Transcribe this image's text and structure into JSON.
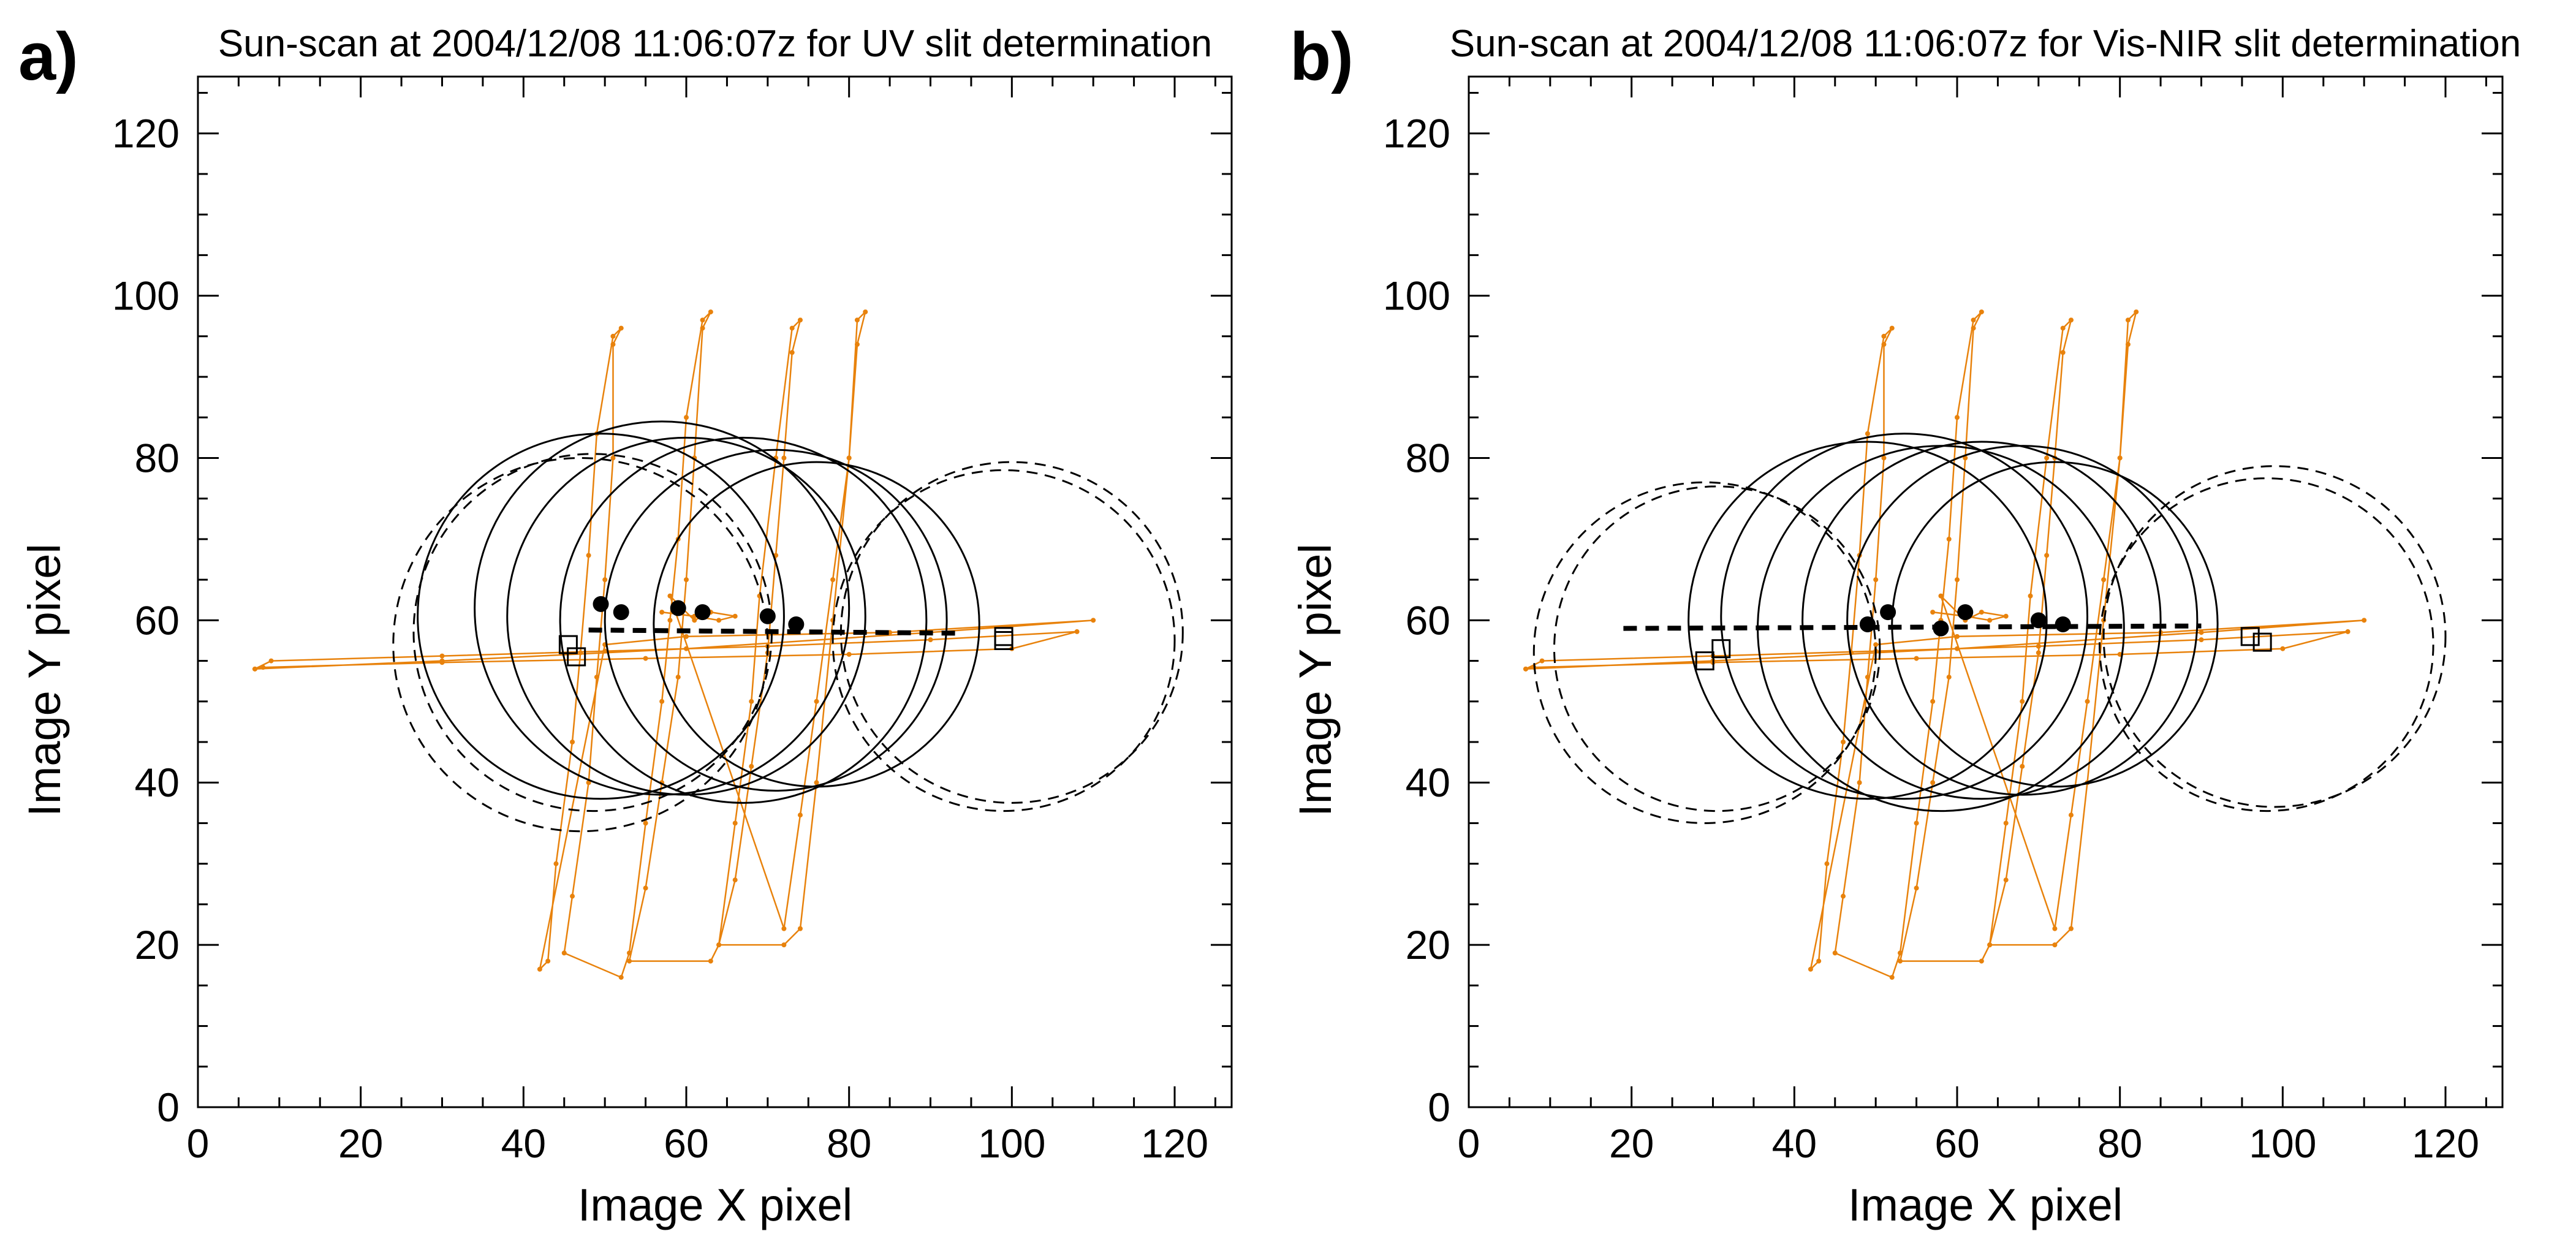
{
  "chart_data": [
    {
      "type": "scatter",
      "panel_label": "a)",
      "title": "Sun-scan at 2004/12/08 11:06:07z for UV slit determination",
      "xlabel": "Image X pixel",
      "ylabel": "Image Y pixel",
      "xlim": [
        0,
        127
      ],
      "ylim": [
        0,
        127
      ],
      "xticks": [
        0,
        20,
        40,
        60,
        80,
        100,
        120
      ],
      "yticks": [
        0,
        20,
        40,
        60,
        80,
        100,
        120
      ],
      "minor_tick_step": 5,
      "grid": false,
      "scan_color": "#e8820c",
      "scan_track": [
        [
          7,
          54
        ],
        [
          9,
          55
        ],
        [
          30,
          55.6
        ],
        [
          50,
          56.2
        ],
        [
          70,
          56.8
        ],
        [
          90,
          57.6
        ],
        [
          108,
          58.6
        ],
        [
          100,
          56.5
        ],
        [
          80,
          55.8
        ],
        [
          55,
          55.3
        ],
        [
          30,
          54.8
        ],
        [
          8,
          54.2
        ],
        [
          7,
          54
        ],
        [
          30,
          55
        ],
        [
          60,
          56.5
        ],
        [
          90,
          58.5
        ],
        [
          110,
          60
        ],
        [
          85,
          58.5
        ],
        [
          60,
          58
        ],
        [
          50,
          57
        ],
        [
          42,
          17
        ],
        [
          43,
          18
        ],
        [
          44,
          30
        ],
        [
          46,
          45
        ],
        [
          47,
          56
        ],
        [
          48,
          68
        ],
        [
          49,
          83
        ],
        [
          51,
          95
        ],
        [
          52,
          96
        ],
        [
          51,
          94
        ],
        [
          51,
          80
        ],
        [
          50,
          65
        ],
        [
          49,
          53
        ],
        [
          48,
          40
        ],
        [
          46,
          26
        ],
        [
          45,
          19
        ],
        [
          52,
          16
        ],
        [
          53,
          19
        ],
        [
          55,
          35
        ],
        [
          57,
          50
        ],
        [
          58,
          60
        ],
        [
          59,
          70
        ],
        [
          60,
          85
        ],
        [
          62,
          97
        ],
        [
          63,
          98
        ],
        [
          62,
          96
        ],
        [
          61,
          80
        ],
        [
          60,
          65
        ],
        [
          59,
          53
        ],
        [
          57,
          40
        ],
        [
          55,
          27
        ],
        [
          53,
          18
        ],
        [
          63,
          18
        ],
        [
          64,
          20
        ],
        [
          66,
          35
        ],
        [
          68,
          50
        ],
        [
          69,
          63
        ],
        [
          71,
          80
        ],
        [
          73,
          96
        ],
        [
          74,
          97
        ],
        [
          73,
          93
        ],
        [
          72,
          80
        ],
        [
          71,
          68
        ],
        [
          70,
          56
        ],
        [
          68,
          42
        ],
        [
          66,
          28
        ],
        [
          64,
          20
        ],
        [
          72,
          20
        ],
        [
          74,
          22
        ],
        [
          76,
          40
        ],
        [
          78,
          60
        ],
        [
          80,
          80
        ],
        [
          81,
          97
        ],
        [
          82,
          98
        ],
        [
          81,
          94
        ],
        [
          80,
          80
        ],
        [
          78,
          65
        ],
        [
          76,
          50
        ],
        [
          74,
          36
        ],
        [
          72,
          22
        ],
        [
          58,
          63
        ],
        [
          61,
          60
        ],
        [
          63,
          61
        ],
        [
          66,
          60.5
        ],
        [
          64,
          60
        ],
        [
          61,
          60.5
        ],
        [
          57,
          61
        ]
      ],
      "solid_circles": [
        {
          "cx": 49.5,
          "cy": 60.5,
          "r": 22.5
        },
        {
          "cx": 57,
          "cy": 61.5,
          "r": 23
        },
        {
          "cx": 60,
          "cy": 60.5,
          "r": 22
        },
        {
          "cx": 67,
          "cy": 60,
          "r": 22.5
        },
        {
          "cx": 71,
          "cy": 60,
          "r": 21
        },
        {
          "cx": 76,
          "cy": 59.5,
          "r": 20
        }
      ],
      "dashed_circles": [
        {
          "cx": 47,
          "cy": 57,
          "r": 23
        },
        {
          "cx": 48.5,
          "cy": 58.5,
          "r": 22
        },
        {
          "cx": 99,
          "cy": 57.5,
          "r": 21
        },
        {
          "cx": 100,
          "cy": 58.5,
          "r": 21
        }
      ],
      "centers": [
        [
          49.5,
          62
        ],
        [
          52,
          61
        ],
        [
          59,
          61.5
        ],
        [
          62,
          61
        ],
        [
          70,
          60.5
        ],
        [
          73.5,
          59.5
        ]
      ],
      "squares": [
        [
          45.5,
          57
        ],
        [
          46.5,
          55.5
        ],
        [
          99,
          58
        ],
        [
          99,
          57.5
        ]
      ],
      "fit_line": [
        [
          48,
          58.8
        ],
        [
          94,
          58.4
        ]
      ]
    },
    {
      "type": "scatter",
      "panel_label": "b)",
      "title": "Sun-scan at 2004/12/08 11:06:07z for Vis-NIR slit determination",
      "xlabel": "Image X pixel",
      "ylabel": "Image Y pixel",
      "xlim": [
        0,
        127
      ],
      "ylim": [
        0,
        127
      ],
      "xticks": [
        0,
        20,
        40,
        60,
        80,
        100,
        120
      ],
      "yticks": [
        0,
        20,
        40,
        60,
        80,
        100,
        120
      ],
      "minor_tick_step": 5,
      "grid": false,
      "scan_color": "#e8820c",
      "scan_track": [
        [
          7,
          54
        ],
        [
          9,
          55
        ],
        [
          30,
          55.6
        ],
        [
          50,
          56.2
        ],
        [
          70,
          56.8
        ],
        [
          90,
          57.6
        ],
        [
          108,
          58.6
        ],
        [
          100,
          56.5
        ],
        [
          80,
          55.8
        ],
        [
          55,
          55.3
        ],
        [
          30,
          54.8
        ],
        [
          8,
          54.2
        ],
        [
          7,
          54
        ],
        [
          30,
          55
        ],
        [
          60,
          56.5
        ],
        [
          90,
          58.5
        ],
        [
          110,
          60
        ],
        [
          85,
          58.5
        ],
        [
          60,
          58
        ],
        [
          50,
          57
        ],
        [
          42,
          17
        ],
        [
          43,
          18
        ],
        [
          44,
          30
        ],
        [
          46,
          45
        ],
        [
          47,
          56
        ],
        [
          48,
          68
        ],
        [
          49,
          83
        ],
        [
          51,
          95
        ],
        [
          52,
          96
        ],
        [
          51,
          94
        ],
        [
          51,
          80
        ],
        [
          50,
          65
        ],
        [
          49,
          53
        ],
        [
          48,
          40
        ],
        [
          46,
          26
        ],
        [
          45,
          19
        ],
        [
          52,
          16
        ],
        [
          53,
          19
        ],
        [
          55,
          35
        ],
        [
          57,
          50
        ],
        [
          58,
          60
        ],
        [
          59,
          70
        ],
        [
          60,
          85
        ],
        [
          62,
          97
        ],
        [
          63,
          98
        ],
        [
          62,
          96
        ],
        [
          61,
          80
        ],
        [
          60,
          65
        ],
        [
          59,
          53
        ],
        [
          57,
          40
        ],
        [
          55,
          27
        ],
        [
          53,
          18
        ],
        [
          63,
          18
        ],
        [
          64,
          20
        ],
        [
          66,
          35
        ],
        [
          68,
          50
        ],
        [
          69,
          63
        ],
        [
          71,
          80
        ],
        [
          73,
          96
        ],
        [
          74,
          97
        ],
        [
          73,
          93
        ],
        [
          72,
          80
        ],
        [
          71,
          68
        ],
        [
          70,
          56
        ],
        [
          68,
          42
        ],
        [
          66,
          28
        ],
        [
          64,
          20
        ],
        [
          72,
          20
        ],
        [
          74,
          22
        ],
        [
          76,
          40
        ],
        [
          78,
          60
        ],
        [
          80,
          80
        ],
        [
          81,
          97
        ],
        [
          82,
          98
        ],
        [
          81,
          94
        ],
        [
          80,
          80
        ],
        [
          78,
          65
        ],
        [
          76,
          50
        ],
        [
          74,
          36
        ],
        [
          72,
          22
        ],
        [
          58,
          63
        ],
        [
          61,
          60
        ],
        [
          63,
          61
        ],
        [
          66,
          60.5
        ],
        [
          64,
          60
        ],
        [
          61,
          60.5
        ],
        [
          57,
          61
        ]
      ],
      "solid_circles": [
        {
          "cx": 49,
          "cy": 60,
          "r": 22
        },
        {
          "cx": 53.5,
          "cy": 60.5,
          "r": 22.5
        },
        {
          "cx": 58,
          "cy": 59,
          "r": 22.5
        },
        {
          "cx": 63,
          "cy": 60,
          "r": 22
        },
        {
          "cx": 68,
          "cy": 60,
          "r": 21.5
        },
        {
          "cx": 72,
          "cy": 59.5,
          "r": 20
        }
      ],
      "dashed_circles": [
        {
          "cx": 29,
          "cy": 56,
          "r": 21
        },
        {
          "cx": 30.5,
          "cy": 56.5,
          "r": 20
        },
        {
          "cx": 98,
          "cy": 57,
          "r": 20.5
        },
        {
          "cx": 99,
          "cy": 58,
          "r": 21
        }
      ],
      "centers": [
        [
          49,
          59.5
        ],
        [
          51.5,
          61
        ],
        [
          58,
          59
        ],
        [
          61,
          61
        ],
        [
          70,
          60
        ],
        [
          73,
          59.5
        ]
      ],
      "squares": [
        [
          29,
          55
        ],
        [
          31,
          56.5
        ],
        [
          96,
          58
        ],
        [
          97.5,
          57.3
        ]
      ],
      "fit_line": [
        [
          19,
          59
        ],
        [
          90,
          59.3
        ]
      ]
    }
  ]
}
